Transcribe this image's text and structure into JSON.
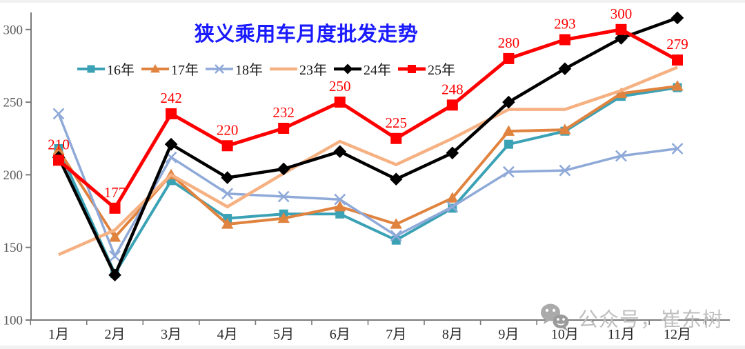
{
  "watermark": {
    "text": "公众号，崔东树",
    "icon": "wechat-icon",
    "color": "#bfbfbf"
  },
  "chart_data": {
    "type": "line",
    "title": "狭义乘用车月度批发走势",
    "title_color": "#1A1AFF",
    "xlabel": "",
    "ylabel": "",
    "categories": [
      "1月",
      "2月",
      "3月",
      "4月",
      "5月",
      "6月",
      "7月",
      "8月",
      "9月",
      "10月",
      "11月",
      "12月"
    ],
    "yticks": [
      100,
      150,
      200,
      250,
      300
    ],
    "ylim": [
      100,
      310
    ],
    "grid": false,
    "legend_position": "top",
    "data_label_color": "#FF0000",
    "series": [
      {
        "name": "16年",
        "color": "#3BA2B5",
        "marker": "square",
        "values": [
          218,
          132,
          196,
          170,
          173,
          173,
          155,
          177,
          221,
          230,
          254,
          260
        ]
      },
      {
        "name": "17年",
        "color": "#E0833F",
        "marker": "triangle",
        "values": [
          217,
          157,
          200,
          166,
          170,
          178,
          166,
          184,
          230,
          231,
          256,
          261
        ]
      },
      {
        "name": "18年",
        "color": "#8FA9D8",
        "marker": "x",
        "values": [
          242,
          144,
          212,
          187,
          185,
          183,
          158,
          178,
          202,
          203,
          213,
          218
        ]
      },
      {
        "name": "23年",
        "color": "#F6B183",
        "marker": "none",
        "values": [
          145,
          162,
          200,
          178,
          201,
          223,
          207,
          225,
          245,
          245,
          258,
          274
        ]
      },
      {
        "name": "24年",
        "color": "#000000",
        "marker": "diamond",
        "values": [
          212,
          131,
          221,
          198,
          204,
          216,
          197,
          215,
          250,
          273,
          294,
          308
        ]
      },
      {
        "name": "25年",
        "color": "#FF0000",
        "marker": "square",
        "data_labels": true,
        "values": [
          210,
          177,
          242,
          220,
          232,
          250,
          225,
          248,
          280,
          293,
          300,
          279
        ]
      }
    ]
  }
}
